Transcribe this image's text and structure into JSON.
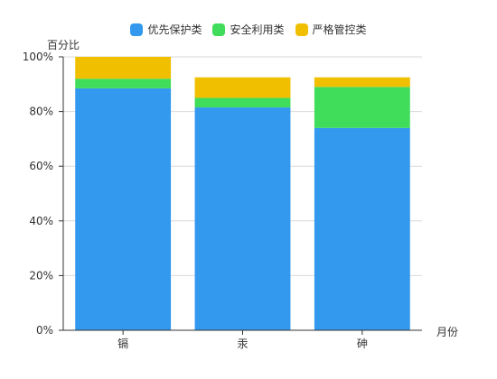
{
  "chart_data": {
    "type": "bar",
    "stacked": true,
    "categories": [
      "镉",
      "汞",
      "砷"
    ],
    "series": [
      {
        "name": "优先保护类",
        "color": "#3399ee",
        "values": [
          88.5,
          81.5,
          74.0
        ]
      },
      {
        "name": "安全利用类",
        "color": "#40dd5a",
        "values": [
          3.5,
          3.5,
          15.0
        ]
      },
      {
        "name": "严格管控类",
        "color": "#f0bf00",
        "values": [
          8.0,
          7.5,
          3.5
        ]
      }
    ],
    "ylabel": "百分比",
    "xlabel": "月份",
    "ylim": [
      0,
      100
    ],
    "yticks": [
      0,
      20,
      40,
      60,
      80,
      100
    ],
    "ytick_labels": [
      "0%",
      "20%",
      "40%",
      "60%",
      "80%",
      "100%"
    ],
    "grid": true,
    "legend_position": "top-center"
  }
}
